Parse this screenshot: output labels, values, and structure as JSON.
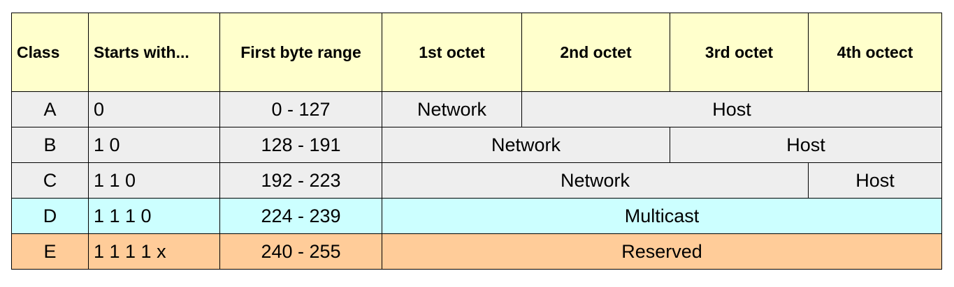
{
  "colors": {
    "header": "#ffffcc",
    "unicast_rows": "#eeeeee",
    "multicast_row": "#ccffff",
    "reserved_row": "#ffcc99"
  },
  "headers": [
    "Class",
    "Starts with...",
    "First byte range",
    "1st octet",
    "2nd octet",
    "3rd octet",
    "4th octect"
  ],
  "rows": [
    {
      "class": "A",
      "starts": "0",
      "range": "0 - 127",
      "network": "Network",
      "host": "Host"
    },
    {
      "class": "B",
      "starts": "1 0",
      "range": "128 - 191",
      "network": "Network",
      "host": "Host"
    },
    {
      "class": "C",
      "starts": "1 1 0",
      "range": "192 - 223",
      "network": "Network",
      "host": "Host"
    },
    {
      "class": "D",
      "starts": "1 1 1 0",
      "range": "224 - 239",
      "use": "Multicast"
    },
    {
      "class": "E",
      "starts": "1 1 1 1 x",
      "range": "240 - 255",
      "use": "Reserved"
    }
  ]
}
